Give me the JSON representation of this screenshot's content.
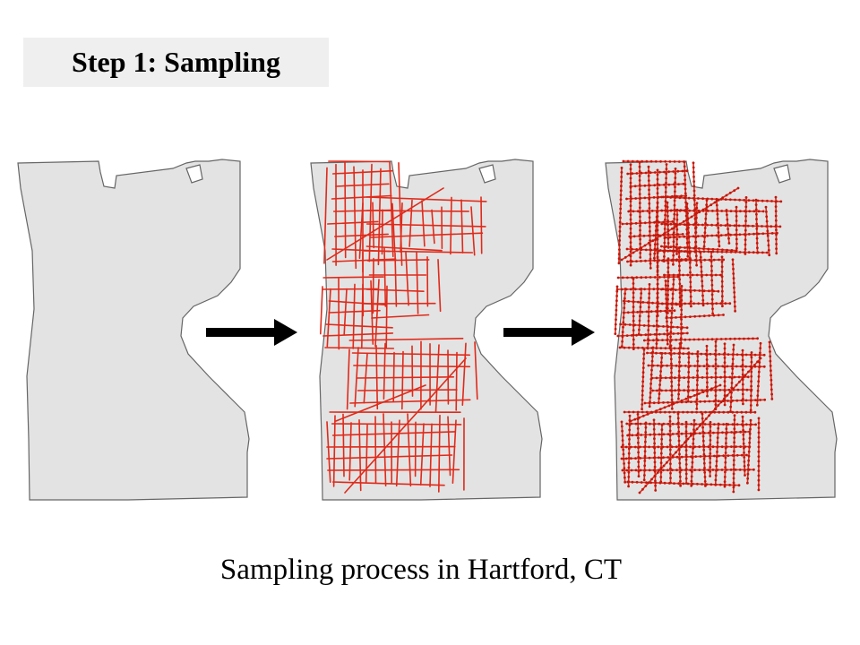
{
  "title": "Step 1: Sampling",
  "caption": "Sampling process in Hartford, CT",
  "colors": {
    "boundary_fill": "#e3e3e3",
    "boundary_stroke": "#666666",
    "road": "#e02a1a",
    "sample_point": "#c0180c",
    "arrow": "#000000"
  },
  "panels": [
    {
      "name": "city-boundary",
      "roads": false,
      "points": false
    },
    {
      "name": "road-network",
      "roads": true,
      "points": false
    },
    {
      "name": "sample-points",
      "roads": true,
      "points": true
    }
  ]
}
